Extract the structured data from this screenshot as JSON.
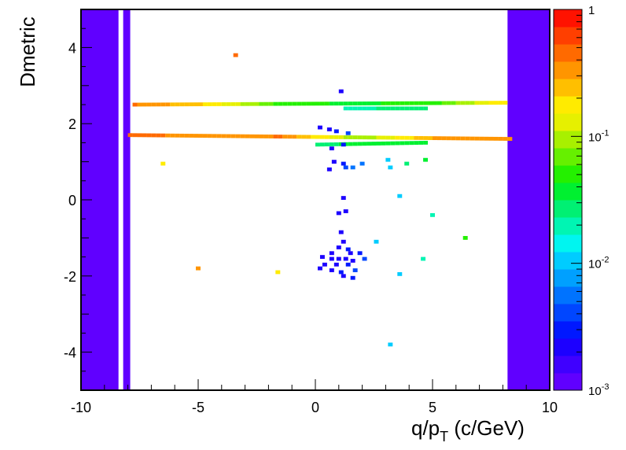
{
  "chart_data": {
    "type": "heatmap",
    "title": "",
    "xlabel": "q/p",
    "xlabel_sub": "T",
    "xlabel_unit": "(c/GeV)",
    "ylabel": "Dmetric",
    "xlim": [
      -10,
      10
    ],
    "ylim": [
      -5,
      5
    ],
    "x_ticks": [
      -10,
      -5,
      0,
      5,
      10
    ],
    "x_tick_labels": [
      "-10",
      "-5",
      "0",
      "5",
      "10"
    ],
    "y_ticks": [
      -4,
      -2,
      0,
      2,
      4
    ],
    "y_tick_labels": [
      "-4",
      "-2",
      "0",
      "2",
      "4"
    ],
    "z_scale": "log",
    "zlim": [
      0.001,
      1
    ],
    "z_tick_labels": [
      {
        "base": "10",
        "exp": "-3",
        "value": 0.001
      },
      {
        "base": "10",
        "exp": "-2",
        "value": 0.01
      },
      {
        "base": "10",
        "exp": "-1",
        "value": 0.1
      },
      {
        "base": "1",
        "exp": "",
        "value": 1
      }
    ],
    "palette": [
      "#6000ff",
      "#3f00ff",
      "#1c00ff",
      "#0018ff",
      "#0046ff",
      "#0073ff",
      "#00a0ff",
      "#00ccff",
      "#00f5f0",
      "#00f5b3",
      "#00f073",
      "#00f030",
      "#24f000",
      "#66f000",
      "#a8f000",
      "#e6f000",
      "#ffeb00",
      "#ffbf00",
      "#ff9500",
      "#ff6a00",
      "#ff3f00",
      "#ff1200"
    ],
    "regions": [
      {
        "x": [
          -10,
          -8.4
        ],
        "y": [
          -5,
          5
        ],
        "z": 0.001
      },
      {
        "x": [
          -8.2,
          -7.9
        ],
        "y": [
          -5,
          5
        ],
        "z": 0.001
      },
      {
        "x": [
          8.2,
          10
        ],
        "y": [
          -5,
          5
        ],
        "z": 0.001
      }
    ],
    "bands": [
      {
        "x": [
          -8.0,
          8.1
        ],
        "y_center": 1.7,
        "y_end": 1.6,
        "thickness": 0.1,
        "z": [
          0.5,
          0.3,
          0.4,
          0.08,
          0.3,
          0.3
        ]
      },
      {
        "x": [
          -7.8,
          8.0
        ],
        "y_center": 2.5,
        "y_end": 2.55,
        "thickness": 0.08,
        "z": [
          0.4,
          0.2,
          0.05,
          0.04,
          0.05,
          0.2
        ]
      },
      {
        "x": [
          0.0,
          4.5
        ],
        "y_center": 1.45,
        "y_end": 1.5,
        "thickness": 0.09,
        "z": [
          0.03,
          0.04
        ]
      },
      {
        "x": [
          1.2,
          4.6
        ],
        "y_center": 2.4,
        "y_end": 2.4,
        "thickness": 0.08,
        "z": [
          0.02,
          0.03
        ]
      }
    ],
    "points": [
      {
        "x": -3.5,
        "y": 3.8,
        "z": 0.5
      },
      {
        "x": 1.0,
        "y": 2.85,
        "z": 0.002
      },
      {
        "x": -6.6,
        "y": 0.95,
        "z": 0.2
      },
      {
        "x": 0.1,
        "y": 1.9,
        "z": 0.002
      },
      {
        "x": 0.5,
        "y": 1.85,
        "z": 0.002
      },
      {
        "x": 0.8,
        "y": 1.8,
        "z": 0.003
      },
      {
        "x": 1.3,
        "y": 1.75,
        "z": 0.004
      },
      {
        "x": 0.6,
        "y": 1.35,
        "z": 0.002
      },
      {
        "x": 1.1,
        "y": 1.45,
        "z": 0.003
      },
      {
        "x": 0.7,
        "y": 1.0,
        "z": 0.002
      },
      {
        "x": 1.1,
        "y": 0.95,
        "z": 0.003
      },
      {
        "x": 1.2,
        "y": 0.85,
        "z": 0.004
      },
      {
        "x": 0.5,
        "y": 0.8,
        "z": 0.002
      },
      {
        "x": 1.5,
        "y": 0.85,
        "z": 0.006
      },
      {
        "x": 1.9,
        "y": 0.95,
        "z": 0.006
      },
      {
        "x": 3.0,
        "y": 1.05,
        "z": 0.01
      },
      {
        "x": 3.1,
        "y": 0.85,
        "z": 0.012
      },
      {
        "x": 3.8,
        "y": 0.95,
        "z": 0.03
      },
      {
        "x": 4.6,
        "y": 1.05,
        "z": 0.04
      },
      {
        "x": 1.1,
        "y": 0.05,
        "z": 0.002
      },
      {
        "x": 3.5,
        "y": 0.1,
        "z": 0.01
      },
      {
        "x": 1.2,
        "y": -0.3,
        "z": 0.002
      },
      {
        "x": 0.9,
        "y": -0.35,
        "z": 0.002
      },
      {
        "x": 4.9,
        "y": -0.4,
        "z": 0.02
      },
      {
        "x": 1.0,
        "y": -0.85,
        "z": 0.002
      },
      {
        "x": 6.3,
        "y": -1.0,
        "z": 0.05
      },
      {
        "x": 1.1,
        "y": -1.1,
        "z": 0.002
      },
      {
        "x": 0.9,
        "y": -1.25,
        "z": 0.002
      },
      {
        "x": 1.3,
        "y": -1.3,
        "z": 0.003
      },
      {
        "x": 2.5,
        "y": -1.1,
        "z": 0.01
      },
      {
        "x": 0.6,
        "y": -1.4,
        "z": 0.002
      },
      {
        "x": 1.4,
        "y": -1.4,
        "z": 0.002
      },
      {
        "x": 1.8,
        "y": -1.4,
        "z": 0.003
      },
      {
        "x": 0.2,
        "y": -1.5,
        "z": 0.002
      },
      {
        "x": 0.6,
        "y": -1.55,
        "z": 0.002
      },
      {
        "x": 0.9,
        "y": -1.55,
        "z": 0.002
      },
      {
        "x": 1.2,
        "y": -1.55,
        "z": 0.002
      },
      {
        "x": 1.5,
        "y": -1.6,
        "z": 0.002
      },
      {
        "x": 2.0,
        "y": -1.55,
        "z": 0.004
      },
      {
        "x": 4.5,
        "y": -1.55,
        "z": 0.02
      },
      {
        "x": 0.3,
        "y": -1.7,
        "z": 0.002
      },
      {
        "x": 0.8,
        "y": -1.7,
        "z": 0.002
      },
      {
        "x": 1.3,
        "y": -1.7,
        "z": 0.003
      },
      {
        "x": 0.1,
        "y": -1.8,
        "z": 0.002
      },
      {
        "x": 0.6,
        "y": -1.85,
        "z": 0.002
      },
      {
        "x": 1.0,
        "y": -1.9,
        "z": 0.003
      },
      {
        "x": 1.6,
        "y": -1.85,
        "z": 0.004
      },
      {
        "x": -5.1,
        "y": -1.8,
        "z": 0.3
      },
      {
        "x": -1.7,
        "y": -1.9,
        "z": 0.2
      },
      {
        "x": 1.1,
        "y": -2.0,
        "z": 0.002
      },
      {
        "x": 1.5,
        "y": -2.05,
        "z": 0.003
      },
      {
        "x": 3.5,
        "y": -1.95,
        "z": 0.01
      },
      {
        "x": 3.1,
        "y": -3.8,
        "z": 0.01
      }
    ]
  }
}
